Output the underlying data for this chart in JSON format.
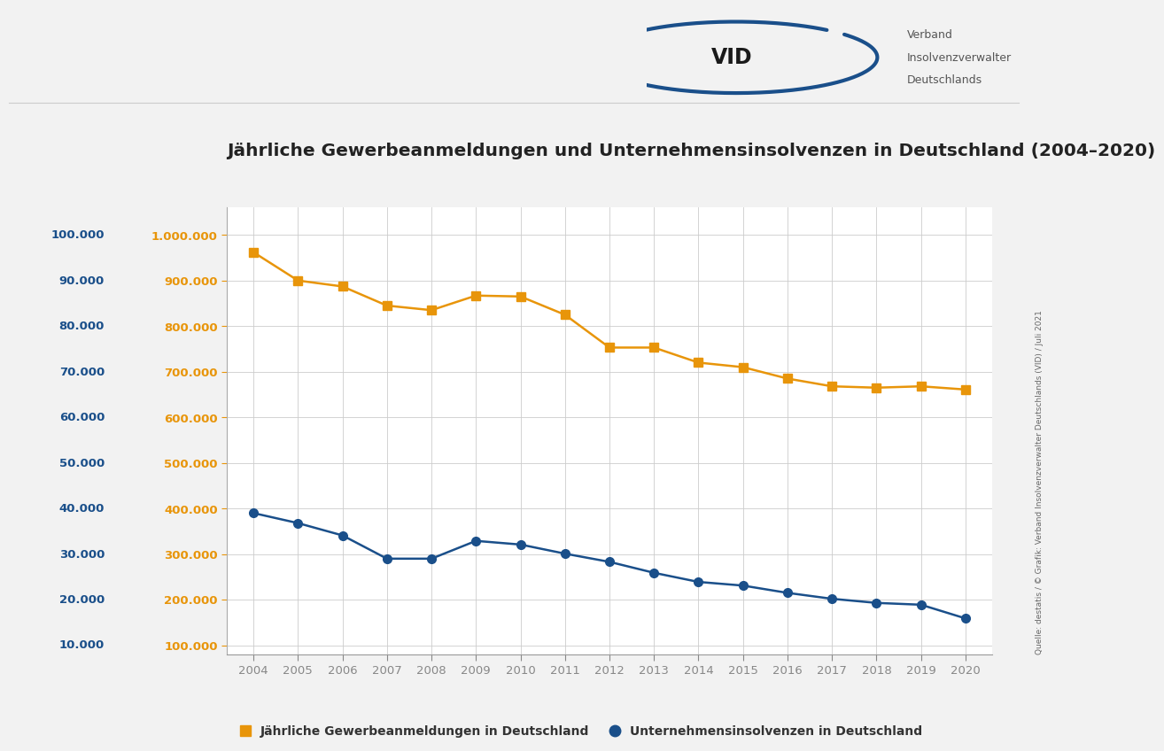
{
  "title": "Jährliche Gewerbeanmeldungen und Unternehmensinsolvenzen in Deutschland (2004–2020)",
  "years": [
    2004,
    2005,
    2006,
    2007,
    2008,
    2009,
    2010,
    2011,
    2012,
    2013,
    2014,
    2015,
    2016,
    2017,
    2018,
    2019,
    2020
  ],
  "gewerbe": [
    962000,
    900000,
    887000,
    845000,
    835000,
    867000,
    865000,
    825000,
    753000,
    753000,
    720000,
    710000,
    685000,
    668000,
    665000,
    668000,
    661000
  ],
  "insolvenzen": [
    39000,
    36800,
    34100,
    29000,
    29000,
    32900,
    32100,
    30100,
    28300,
    25900,
    23900,
    23100,
    21500,
    20200,
    19300,
    18900,
    15900
  ],
  "gewerbe_color": "#E8950A",
  "insolvenzen_color": "#1A4F8A",
  "background_color": "#F2F2F2",
  "plot_background": "#FFFFFF",
  "grid_color": "#CCCCCC",
  "title_color": "#222222",
  "left_axis_color": "#E8950A",
  "right_axis_color": "#1A4F8A",
  "y_left_ticks": [
    100000,
    200000,
    300000,
    400000,
    500000,
    600000,
    700000,
    800000,
    900000,
    1000000
  ],
  "y_right_ticks": [
    10000,
    20000,
    30000,
    40000,
    50000,
    60000,
    70000,
    80000,
    90000,
    100000
  ],
  "y_left_labels": [
    "100.000",
    "200.000",
    "300.000",
    "400.000",
    "500.000",
    "600.000",
    "700.000",
    "800.000",
    "900.000",
    "1.000.000"
  ],
  "y_right_labels": [
    "10.000",
    "20.000",
    "30.000",
    "40.000",
    "50.000",
    "60.000",
    "70.000",
    "80.000",
    "90.000",
    "100.000"
  ],
  "legend_gewerbe": "Jährliche Gewerbeanmeldungen in Deutschland",
  "legend_insolvenzen": "Unternehmensinsolvenzen in Deutschland",
  "source_text": "Quelle: destatis / © Grafik: Verband Insolvenzverwalter Deutschlands (VID) / Juli 2021",
  "vid_text_line1": "Verband",
  "vid_text_line2": "Insolvenzverwalter",
  "vid_text_line3": "Deutschlands"
}
